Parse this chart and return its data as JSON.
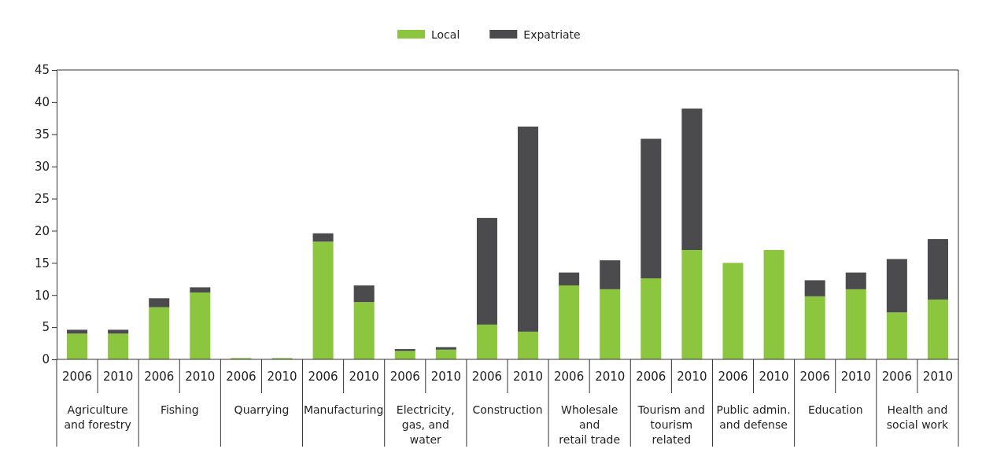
{
  "chart_data": {
    "type": "bar",
    "stacked": true,
    "categories": [
      "2006",
      "2010",
      "2006",
      "2010",
      "2006",
      "2010",
      "2006",
      "2010",
      "2006",
      "2010",
      "2006",
      "2010",
      "2006",
      "2010",
      "2006",
      "2010",
      "2006",
      "2010",
      "2006",
      "2010",
      "2006",
      "2010"
    ],
    "series": [
      {
        "name": "Local",
        "color": "#8cc63f",
        "values": [
          4.0,
          4.0,
          8.1,
          10.4,
          0.2,
          0.2,
          18.3,
          8.9,
          1.3,
          1.5,
          5.4,
          4.3,
          11.5,
          10.9,
          12.6,
          17.0,
          15.0,
          17.0,
          9.8,
          10.9,
          7.3,
          9.3
        ]
      },
      {
        "name": "Expatriate",
        "color": "#4b4b4d",
        "values": [
          0.6,
          0.6,
          1.4,
          0.8,
          0,
          0,
          1.3,
          2.6,
          0.3,
          0.4,
          16.6,
          31.9,
          2.0,
          4.5,
          21.7,
          22.0,
          0,
          0,
          2.5,
          2.6,
          8.3,
          9.4
        ]
      }
    ],
    "annotations": [
      "Agriculture\nand forestry",
      "Fishing",
      "Quarrying",
      "Manufacturing",
      "Electricity,\ngas, and\nwater",
      "Construction",
      "Wholesale\nand\nretail trade",
      "Tourism and\ntourism\nrelated",
      "Public admin.\nand defense",
      "Education",
      "Health and\nsocial work"
    ],
    "ylim": [
      0,
      45
    ],
    "yticks": [
      0,
      5,
      10,
      15,
      20,
      25,
      30,
      35,
      40,
      45
    ],
    "grid": false,
    "legend": "top"
  }
}
